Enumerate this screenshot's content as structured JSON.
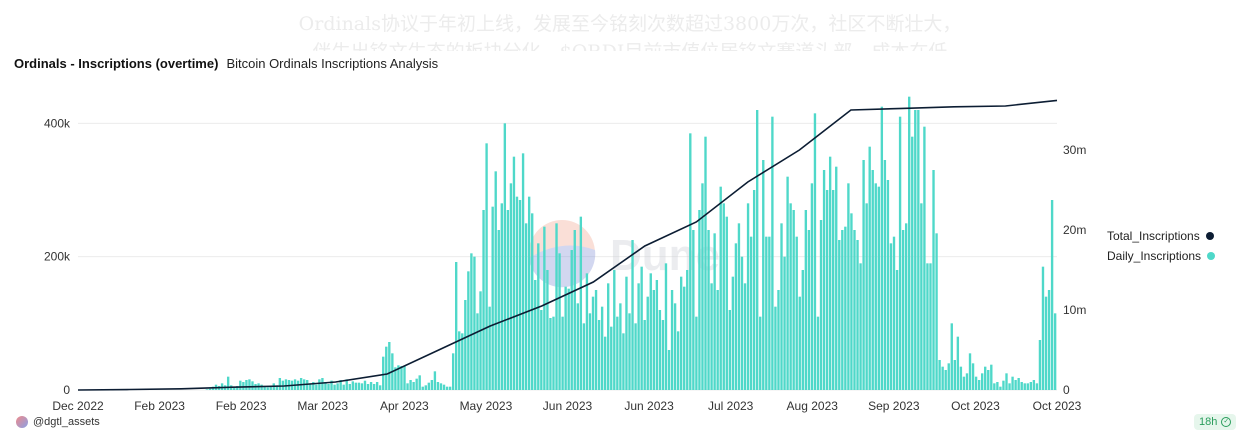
{
  "overlay": {
    "line1": "Ordinals协议于年初上线，发展至今铭刻次数超过3800万次，社区不断壮大，",
    "line2": "伴生出铭文生态的板块分化，$ORDI目前市值位居铭文赛道头部，成本在低"
  },
  "header": {
    "title": "Ordinals - Inscriptions (overtime)",
    "subtitle": "Bitcoin Ordinals Inscriptions Analysis"
  },
  "watermark": {
    "text": "Dune"
  },
  "footer": {
    "author": "@dgtl_assets",
    "age_badge": "18h"
  },
  "colors": {
    "bars": "#4fd8c9",
    "line": "#0c1d33"
  },
  "chart_data": {
    "type": "bar",
    "left_axis": {
      "ticks": [
        0,
        200000,
        400000
      ],
      "tick_labels": [
        "0",
        "200k",
        "400k"
      ],
      "range": [
        0,
        450000
      ]
    },
    "right_axis": {
      "ticks": [
        0,
        10000000,
        20000000,
        30000000
      ],
      "tick_labels": [
        "0",
        "10m",
        "20m",
        "30m"
      ],
      "range": [
        0,
        37500000
      ]
    },
    "x_tick_labels": [
      "Dec 2022",
      "Feb 2023",
      "Feb 2023",
      "Mar 2023",
      "Apr 2023",
      "May 2023",
      "Jun 2023",
      "Jun 2023",
      "Jul 2023",
      "Aug 2023",
      "Sep 2023",
      "Oct 2023",
      "Oct 2023"
    ],
    "grid": true,
    "legend_position": "right",
    "series": [
      {
        "name": "Daily_Inscriptions",
        "axis": "left",
        "type": "bar",
        "values": [
          0,
          0,
          0,
          0,
          0,
          0,
          0,
          0,
          0,
          0,
          0,
          0,
          0,
          0,
          0,
          0,
          0,
          0,
          0,
          0,
          0,
          0,
          0,
          0,
          0,
          0,
          0,
          0,
          0,
          0,
          0,
          0,
          0,
          0,
          0,
          0,
          0,
          0,
          0,
          0,
          0,
          0,
          1000,
          2000,
          5000,
          8000,
          6000,
          10000,
          7000,
          20000,
          7000,
          5000,
          6000,
          14000,
          12000,
          15000,
          16000,
          13000,
          9000,
          10000,
          8000,
          5000,
          4000,
          5000,
          10000,
          7000,
          18000,
          14000,
          16000,
          15000,
          14000,
          16000,
          14000,
          18000,
          16000,
          15000,
          10000,
          12000,
          8000,
          16000,
          18000,
          12000,
          9000,
          14000,
          8000,
          10000,
          15000,
          8000,
          16000,
          9000,
          13000,
          11000,
          11000,
          10000,
          14000,
          9000,
          12000,
          9000,
          12000,
          7000,
          50000,
          65000,
          72000,
          55000,
          34000,
          37000,
          36000,
          36000,
          10000,
          15000,
          12000,
          17000,
          22000,
          5000,
          7000,
          11000,
          15000,
          28000,
          12000,
          10000,
          8000,
          5000,
          5000,
          55000,
          192000,
          88000,
          85000,
          135000,
          178000,
          205000,
          200000,
          115000,
          148000,
          270000,
          370000,
          125000,
          275000,
          328000,
          240000,
          280000,
          400000,
          270000,
          310000,
          350000,
          290000,
          285000,
          355000,
          250000,
          290000,
          265000,
          165000,
          220000,
          120000,
          245000,
          180000,
          108000,
          110000,
          250000,
          205000,
          110000,
          155000,
          152000,
          210000,
          240000,
          130000,
          260000,
          100000,
          175000,
          115000,
          140000,
          150000,
          105000,
          125000,
          80000,
          160000,
          95000,
          180000,
          110000,
          130000,
          85000,
          170000,
          115000,
          225000,
          100000,
          160000,
          185000,
          105000,
          140000,
          175000,
          150000,
          165000,
          120000,
          105000,
          190000,
          60000,
          150000,
          130000,
          88000,
          170000,
          155000,
          180000,
          385000,
          240000,
          110000,
          270000,
          310000,
          380000,
          240000,
          160000,
          235000,
          150000,
          305000,
          280000,
          260000,
          120000,
          170000,
          220000,
          250000,
          200000,
          160000,
          280000,
          230000,
          300000,
          420000,
          110000,
          345000,
          230000,
          230000,
          410000,
          125000,
          150000,
          250000,
          200000,
          320000,
          280000,
          270000,
          230000,
          140000,
          180000,
          270000,
          240000,
          310000,
          415000,
          110000,
          255000,
          330000,
          300000,
          350000,
          300000,
          335000,
          225000,
          240000,
          245000,
          310000,
          265000,
          240000,
          225000,
          190000,
          345000,
          280000,
          365000,
          330000,
          310000,
          305000,
          425000,
          345000,
          315000,
          220000,
          230000,
          180000,
          410000,
          240000,
          250000,
          440000,
          380000,
          420000,
          420000,
          280000,
          395000,
          190000,
          190000,
          330000,
          235000,
          45000,
          35000,
          30000,
          40000,
          100000,
          45000,
          80000,
          35000,
          20000,
          25000,
          55000,
          40000,
          20000,
          15000,
          25000,
          35000,
          30000,
          38000,
          10000,
          12000,
          5000,
          14000,
          25000,
          10000,
          20000,
          15000,
          18000,
          12000,
          10000,
          10000,
          12000,
          15000,
          10000,
          75000,
          185000,
          140000,
          150000,
          285000,
          115000
        ]
      },
      {
        "name": "Total_Inscriptions",
        "axis": "right",
        "type": "line",
        "points": [
          [
            "Dec 2022",
            0
          ],
          [
            "Feb 2023",
            60000
          ],
          [
            "Feb 2023",
            150000
          ],
          [
            "Mar 2023",
            350000
          ],
          [
            "Apr 2023",
            500000
          ],
          [
            "Apr 2023",
            1000000
          ],
          [
            "May 2023",
            2000000
          ],
          [
            "May 2023",
            5000000
          ],
          [
            "Jun 2023",
            8000000
          ],
          [
            "Jun 2023",
            10500000
          ],
          [
            "Jul 2023",
            13500000
          ],
          [
            "Jul 2023",
            18000000
          ],
          [
            "Aug 2023",
            21000000
          ],
          [
            "Aug 2023",
            26000000
          ],
          [
            "Sep 2023",
            30000000
          ],
          [
            "Sep 2023",
            35000000
          ],
          [
            "Oct 2023",
            35200000
          ],
          [
            "Oct 2023",
            35400000
          ],
          [
            "Oct 2023",
            35500000
          ],
          [
            "Oct 2023",
            36200000
          ]
        ]
      }
    ]
  }
}
